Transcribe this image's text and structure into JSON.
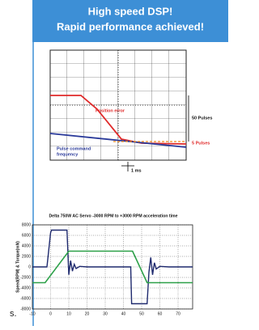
{
  "header": {
    "lines": [
      "High speed DSP!",
      "Rapid performance achieved!"
    ]
  },
  "scope": {
    "position_error": "Position error",
    "pulse_command": [
      "Pulse command",
      "frequency"
    ],
    "pulses_50": "50 Pulses",
    "pulses_5": "5 Pulses",
    "time": "1 ms"
  },
  "footer_text": "s.",
  "chart_data": {
    "type": "line",
    "title": "Delta 750W AC Servo -3000 RPM to +3000 RPM acceleration time",
    "y_label": "Speed(RPM) & Torque(mN)",
    "series": [
      {
        "color": "#1f2a6e",
        "x": [
          -10,
          -2,
          0,
          0.5,
          9,
          10,
          11,
          12,
          13,
          14,
          16,
          20,
          30,
          44,
          44.5,
          53,
          54,
          55,
          56,
          57,
          58,
          60,
          65,
          78
        ],
        "values": [
          0,
          0,
          6500,
          7000,
          7000,
          -1500,
          1200,
          -800,
          500,
          -300,
          100,
          0,
          0,
          0,
          -7000,
          -7000,
          -1000,
          1800,
          -1500,
          800,
          -400,
          100,
          0,
          0
        ]
      },
      {
        "color": "#2ca048",
        "x": [
          -10,
          -3,
          10,
          45,
          53,
          78
        ],
        "values": [
          -3000,
          -3000,
          3000,
          3000,
          -3000,
          -3000
        ]
      }
    ],
    "xlim": [
      -10,
      78
    ],
    "ylim": [
      -8000,
      8000
    ],
    "xticks": [
      -10,
      0,
      10,
      20,
      30,
      40,
      50,
      60,
      70
    ],
    "yticks": [
      -8000,
      -6000,
      -4000,
      -2000,
      0,
      2000,
      4000,
      6000,
      8000
    ],
    "grid": true
  }
}
